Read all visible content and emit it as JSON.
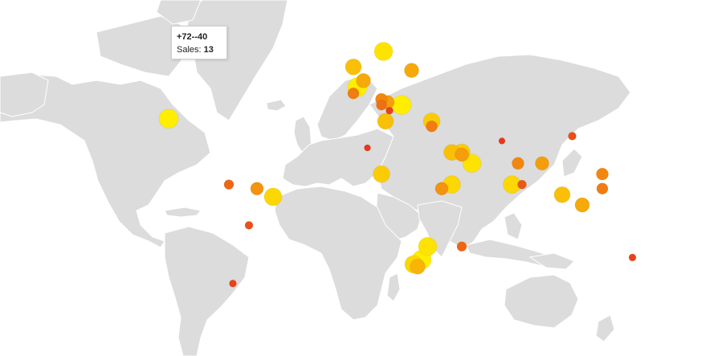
{
  "tooltip": {
    "title": "+72--40",
    "label": "Sales:",
    "value": "13"
  },
  "legend_colors": {
    "low": "#e8371a",
    "mid_low": "#f06a1c",
    "mid": "#f7a21f",
    "mid_high": "#fbc81c",
    "high": "#ffee00"
  },
  "map": {
    "land_color": "#dcdcdc",
    "background_color": "#ffffff"
  },
  "chart_data": {
    "type": "scatter",
    "x": [
      -40,
      -96,
      -66,
      -52,
      -44,
      -56,
      -64,
      -4,
      11,
      1,
      -2,
      -4,
      10,
      10,
      14,
      25,
      12,
      13,
      20,
      35,
      35,
      3,
      10,
      45,
      50,
      55,
      50,
      40,
      45,
      33,
      30,
      26,
      28,
      50,
      70,
      90,
      78,
      80,
      75,
      105,
      100,
      120,
      120,
      110,
      135
    ],
    "y": [
      72,
      39,
      10,
      8,
      4,
      -10,
      -36,
      56,
      60,
      52,
      50,
      48,
      46,
      44,
      42,
      55,
      38,
      45,
      44,
      38,
      36,
      27,
      15,
      25,
      25,
      20,
      24,
      8,
      10,
      -20,
      -26,
      -28,
      -29,
      -20,
      30,
      20,
      20,
      10,
      10,
      32,
      5,
      8,
      15,
      0,
      -25
    ],
    "values": [
      13,
      20,
      8,
      12,
      18,
      6,
      5,
      16,
      19,
      14,
      20,
      10,
      11,
      9,
      5,
      14,
      16,
      13,
      20,
      17,
      10,
      4,
      17,
      16,
      17,
      19,
      13,
      12,
      18,
      19,
      20,
      18,
      15,
      8,
      4,
      13,
      11,
      7,
      18,
      6,
      16,
      10,
      11,
      14,
      5
    ],
    "color_scale": [
      "#e8371a",
      "#ffee00"
    ]
  }
}
